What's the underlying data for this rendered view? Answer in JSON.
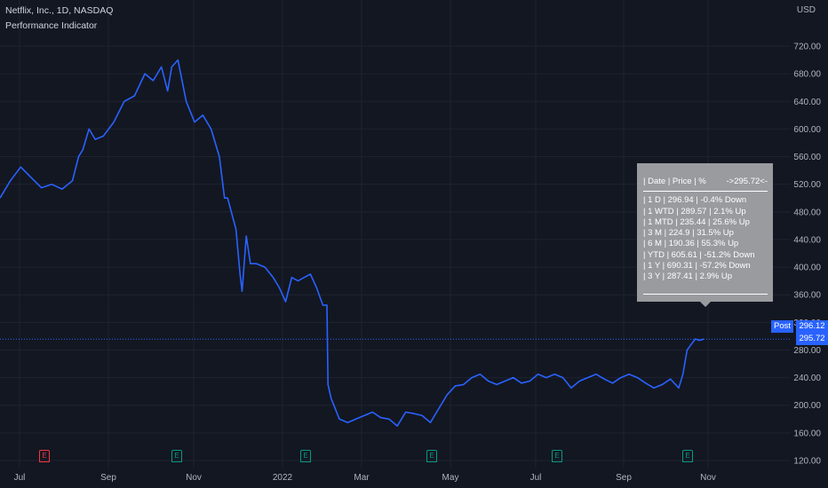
{
  "header": {
    "title": "Netflix, Inc., 1D, NASDAQ",
    "indicator": "Performance Indicator"
  },
  "currency": "USD",
  "tooltip": {
    "head_left": "| Date | Price    | %",
    "head_right": "->295.72<-",
    "rows": [
      "| 1 D | 296.94  | -0.4% Down",
      "| 1 WTD | 289.57 | 2.1% Up",
      "| 1 MTD | 235.44 | 25.6% Up",
      "| 3 M | 224.9 | 31.5% Up",
      "| 6 M | 190.36 | 55.3% Up",
      "| YTD | 605.61 | -51.2% Down",
      "| 1 Y | 690.31 | -57.2% Down",
      "| 3 Y | 287.41 | 2.9% Up"
    ]
  },
  "post_label": "Post",
  "post_price": "296.12",
  "last_price": "295.72",
  "events": [
    {
      "label": "E",
      "kind": "earnings-negative"
    },
    {
      "label": "E",
      "kind": "earnings"
    },
    {
      "label": "E",
      "kind": "earnings"
    },
    {
      "label": "E",
      "kind": "earnings"
    },
    {
      "label": "E",
      "kind": "earnings"
    },
    {
      "label": "E",
      "kind": "earnings"
    }
  ],
  "colors": {
    "background": "#131722",
    "line": "#2962ff",
    "grid": "#1f2330",
    "text": "#b2b5be",
    "tooltip": "#9a9b9f",
    "negative": "#f23645",
    "earnings": "#089981"
  },
  "chart_data": {
    "type": "line",
    "title": "Netflix, Inc., 1D, NASDAQ",
    "ylabel": "USD",
    "ylim": [
      110,
      760
    ],
    "yticks": [
      "120.00",
      "160.00",
      "200.00",
      "240.00",
      "280.00",
      "320.00",
      "360.00",
      "400.00",
      "440.00",
      "480.00",
      "520.00",
      "560.00",
      "600.00",
      "640.00",
      "680.00",
      "720.00"
    ],
    "xticks": [
      "Jul",
      "Sep",
      "Nov",
      "2022",
      "Mar",
      "May",
      "Jul",
      "Sep",
      "Nov"
    ],
    "series": [
      {
        "x": [
          0,
          0.5,
          1,
          1.5,
          2,
          2.5,
          3,
          3.5,
          3.8,
          4,
          4.3,
          4.6,
          5,
          5.5,
          6,
          6.5,
          7,
          7.4,
          7.8,
          8.1,
          8.3,
          8.6,
          9,
          9.4,
          9.8,
          10.2,
          10.6,
          10.85,
          11,
          11.4,
          11.6,
          11.7,
          11.9,
          12.1,
          12.4,
          12.8,
          13.2,
          13.5,
          13.8,
          14.1,
          14.4,
          14.7,
          15,
          15.3,
          15.6,
          15.8,
          15.85,
          16,
          16.4,
          16.8,
          17.2,
          17.6,
          18,
          18.4,
          18.8,
          19.2,
          19.6,
          20,
          20.4,
          20.8,
          21.2,
          21.6,
          22,
          22.4,
          22.8,
          23.2,
          23.6,
          24,
          24.4,
          24.8,
          25.2,
          25.6,
          26,
          26.4,
          26.8,
          27.2,
          27.6,
          28,
          28.4,
          28.8,
          29.2,
          29.6,
          30,
          30.4,
          30.8,
          31.2,
          31.6,
          32,
          32.4,
          32.8,
          33,
          33.2,
          33.4,
          33.6,
          33.8,
          34
        ],
        "y": [
          500,
          525,
          545,
          530,
          515,
          520,
          513,
          525,
          560,
          570,
          600,
          585,
          590,
          610,
          640,
          648,
          680,
          670,
          690,
          655,
          690,
          700,
          640,
          610,
          620,
          600,
          560,
          500,
          500,
          455,
          390,
          365,
          445,
          405,
          405,
          400,
          385,
          370,
          350,
          385,
          380,
          385,
          390,
          370,
          345,
          345,
          230,
          210,
          180,
          175,
          180,
          185,
          190,
          182,
          180,
          170,
          190,
          188,
          185,
          175,
          195,
          215,
          228,
          230,
          240,
          245,
          235,
          230,
          235,
          240,
          232,
          235,
          245,
          240,
          245,
          240,
          225,
          235,
          240,
          245,
          238,
          232,
          240,
          245,
          240,
          232,
          225,
          230,
          238,
          225,
          245,
          280,
          288,
          296,
          294,
          295.72
        ]
      }
    ]
  }
}
